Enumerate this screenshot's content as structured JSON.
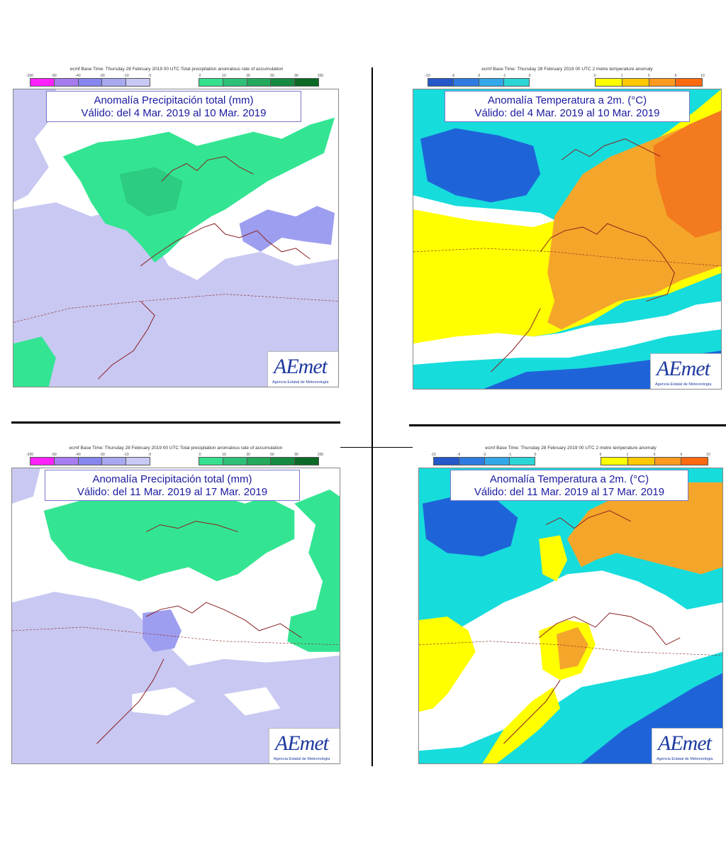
{
  "palettes": {
    "precip_neg": [
      "#ff22ff",
      "#a77cf0",
      "#8686ee",
      "#a8a8f0",
      "#c9c9f6"
    ],
    "precip_pos": [
      "#36e08e",
      "#2fc078",
      "#23a85c",
      "#168a40",
      "#0b6a26"
    ],
    "temp_neg": [
      "#2457c8",
      "#2f7ae0",
      "#33a8e8",
      "#2cd6d6"
    ],
    "temp_pos": [
      "#ffff00",
      "#ffc800",
      "#ff9a20",
      "#ff6a10"
    ],
    "precip_map": {
      "sea_bg": "#ffffff",
      "neg_light": "#c8c8f2",
      "neg_mid": "#9e9ef0",
      "pos_light": "#33e592",
      "pos_mid": "#2ccc82"
    },
    "temp_map": {
      "cold_dark": "#1e64d8",
      "cold_light": "#17dcdc",
      "neutral": "#ffffff",
      "warm_light": "#ffff00",
      "warm_mid": "#f4a62a",
      "warm_dark": "#f37a1e"
    },
    "coast": "#8b2020"
  },
  "panels": [
    {
      "kind": "precip",
      "header": "ecmf Base Time: Thursday 28 February 2019 00 UTC Total precipitation anomalous rate of accumulation",
      "ticks_neg": [
        "-200",
        "-90",
        "-40",
        "-30",
        "-10",
        "-5"
      ],
      "ticks_pos": [
        "0",
        "10",
        "30",
        "50",
        "90",
        "200"
      ],
      "title_line1": "Anomalía Precipitación total (mm)",
      "title_line2": "Válido: del 4 Mar. 2019 al 10 Mar. 2019",
      "logo": "AEmet",
      "logo_sub": "Agencia Estatal de Meteorología"
    },
    {
      "kind": "temp",
      "header": "ecmf Base Time: Thursday 28 February 2019 00 UTC 2 metre temperature anomaly",
      "ticks_neg": [
        "-10",
        "-6",
        "-3",
        "-1",
        "0"
      ],
      "ticks_pos": [
        "0",
        "1",
        "3",
        "6",
        "10"
      ],
      "title_line1": "Anomalía Temperatura a 2m. (°C)",
      "title_line2": "Válido: del 4 Mar. 2019 al 10 Mar. 2019",
      "logo": "AEmet",
      "logo_sub": "Agencia Estatal de Meteorología"
    },
    {
      "kind": "precip",
      "header": "ecmf Base Time: Thursday 28 February 2019 00 UTC Total precipitation anomalous rate of accumulation",
      "ticks_neg": [
        "-200",
        "-90",
        "-40",
        "-30",
        "-10",
        "-5"
      ],
      "ticks_pos": [
        "0",
        "10",
        "30",
        "50",
        "90",
        "200"
      ],
      "title_line1": "Anomalía Precipitación total (mm)",
      "title_line2": "Válido: del 11 Mar. 2019 al 17 Mar. 2019",
      "logo": "AEmet",
      "logo_sub": "Agencia Estatal de Meteorología"
    },
    {
      "kind": "temp",
      "header": "ecmf Base Time: Thursday 28 February 2019 00 UTC 2 metre temperature anomaly",
      "ticks_neg": [
        "-10",
        "-6",
        "-3",
        "-1",
        "0"
      ],
      "ticks_pos": [
        "0",
        "1",
        "3",
        "6",
        "10"
      ],
      "title_line1": "Anomalía Temperatura a 2m. (°C)",
      "title_line2": "Válido: del 11 Mar. 2019 al 17 Mar. 2019",
      "logo": "AEmet",
      "logo_sub": "Agencia Estatal de Meteorología"
    }
  ]
}
